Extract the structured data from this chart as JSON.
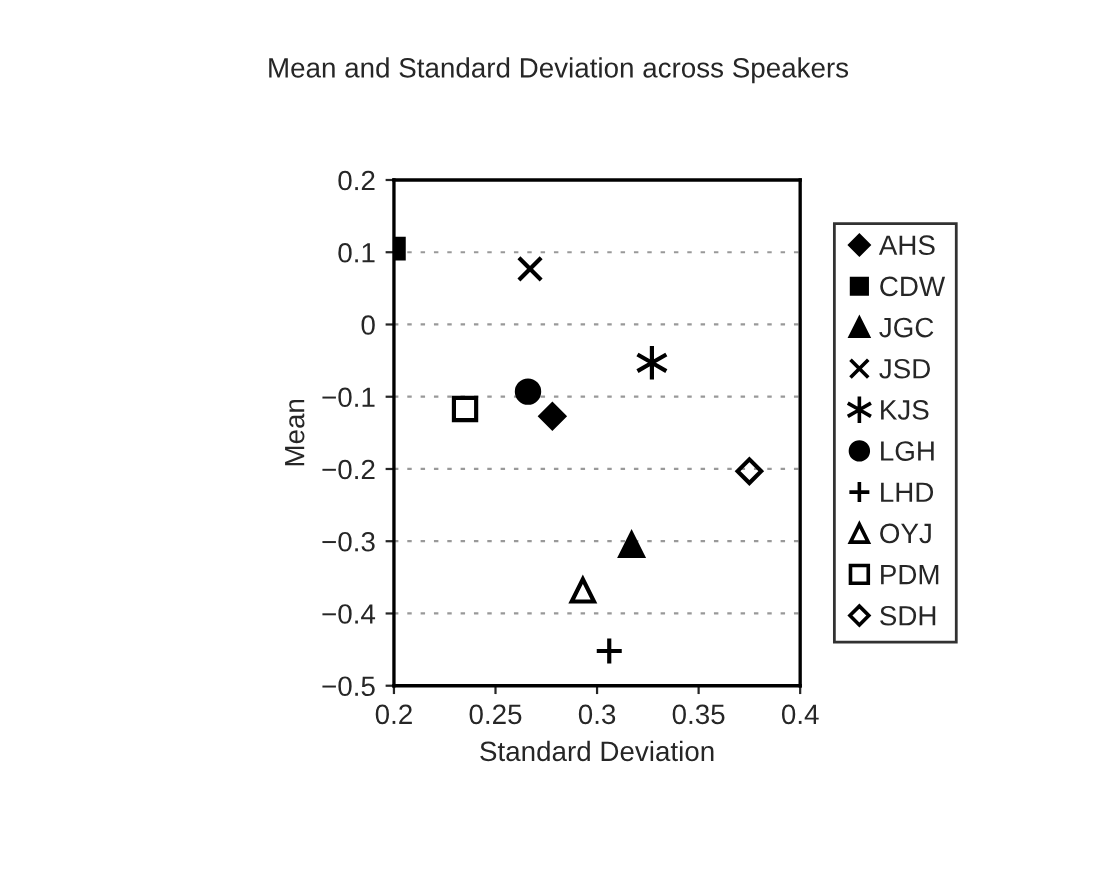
{
  "chart_data": {
    "type": "scatter",
    "title": "Mean and Standard Deviation across Speakers",
    "xlabel": "Standard Deviation",
    "ylabel": "Mean",
    "xlim": [
      0.2,
      0.4
    ],
    "xticks": [
      0.2,
      0.25,
      0.3,
      0.35,
      0.4
    ],
    "ylim": [
      -0.5,
      0.2
    ],
    "yticks": [
      {
        "value": -0.5,
        "label": "−0.5"
      },
      {
        "value": -0.4,
        "label": "−0.4"
      },
      {
        "value": -0.3,
        "label": "−0.3"
      },
      {
        "value": -0.2,
        "label": "−0.2"
      },
      {
        "value": -0.1,
        "label": "−0.1"
      },
      0,
      0.1,
      0.2
    ],
    "grid": "y",
    "legend": "right",
    "series": [
      {
        "name": "AHS",
        "color": "#000000",
        "marker": "diamond",
        "x": [
          0.278
        ],
        "values": [
          -0.127
        ]
      },
      {
        "name": "CDW",
        "color": "#000000",
        "marker": "square",
        "x": [
          0.2
        ],
        "values": [
          0.105
        ]
      },
      {
        "name": "JGC",
        "color": "#000000",
        "marker": "triangle",
        "x": [
          0.317
        ],
        "values": [
          -0.305
        ]
      },
      {
        "name": "JSD",
        "color": "#000000",
        "marker": "cross",
        "x": [
          0.267
        ],
        "values": [
          0.077
        ]
      },
      {
        "name": "KJS",
        "color": "#000000",
        "marker": "cross",
        "x": [
          0.327
        ],
        "values": [
          -0.053
        ]
      },
      {
        "name": "LGH",
        "color": "#000000",
        "marker": "circle",
        "x": [
          0.266
        ],
        "values": [
          -0.093
        ]
      },
      {
        "name": "LHD",
        "color": "#000000",
        "marker": "cross",
        "x": [
          0.306
        ],
        "values": [
          -0.452
        ]
      },
      {
        "name": "OYJ",
        "color": "#000000",
        "marker": "triangle",
        "x": [
          0.293
        ],
        "values": [
          -0.368
        ]
      },
      {
        "name": "PDM",
        "color": "#000000",
        "marker": "square",
        "x": [
          0.235
        ],
        "values": [
          -0.117
        ]
      },
      {
        "name": "SDH",
        "color": "#000000",
        "marker": "diamond",
        "x": [
          0.375
        ],
        "values": [
          -0.203
        ]
      }
    ]
  }
}
